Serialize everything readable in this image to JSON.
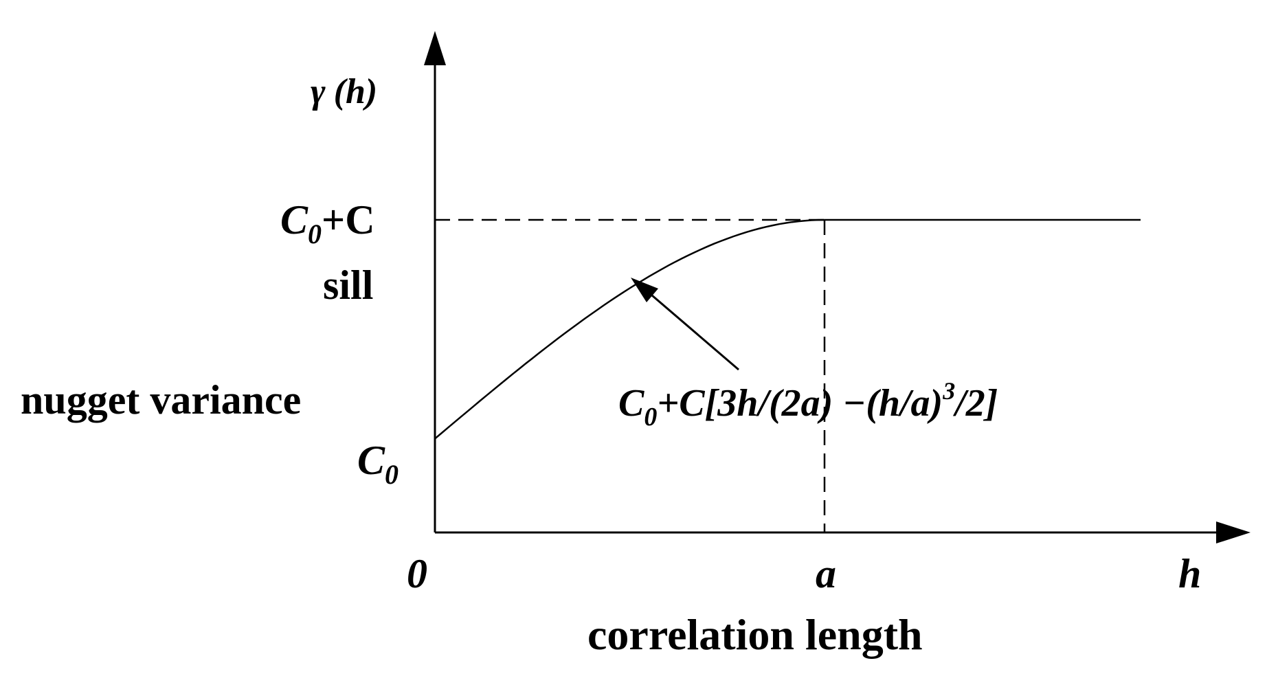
{
  "y_axis": {
    "label_symbol": "γ",
    "label_arg": "(h)"
  },
  "x_axis": {
    "label": "h",
    "origin": "0"
  },
  "sill": {
    "symbol": "C",
    "subscript": "0",
    "rest": "+C",
    "text": "sill"
  },
  "nugget": {
    "text": "nugget variance",
    "symbol": "C",
    "subscript": "0"
  },
  "range": {
    "symbol": "a",
    "text": "correlation length"
  },
  "formula": {
    "c": "C",
    "sub": "0",
    "main": "+C[3h/(2a) −(h/a)",
    "sup": "3",
    "tail": "/2]"
  },
  "model": {
    "nugget_value": 0.3,
    "sill_value": 1.0,
    "range_value": 1.0,
    "x_max": 1.8
  }
}
